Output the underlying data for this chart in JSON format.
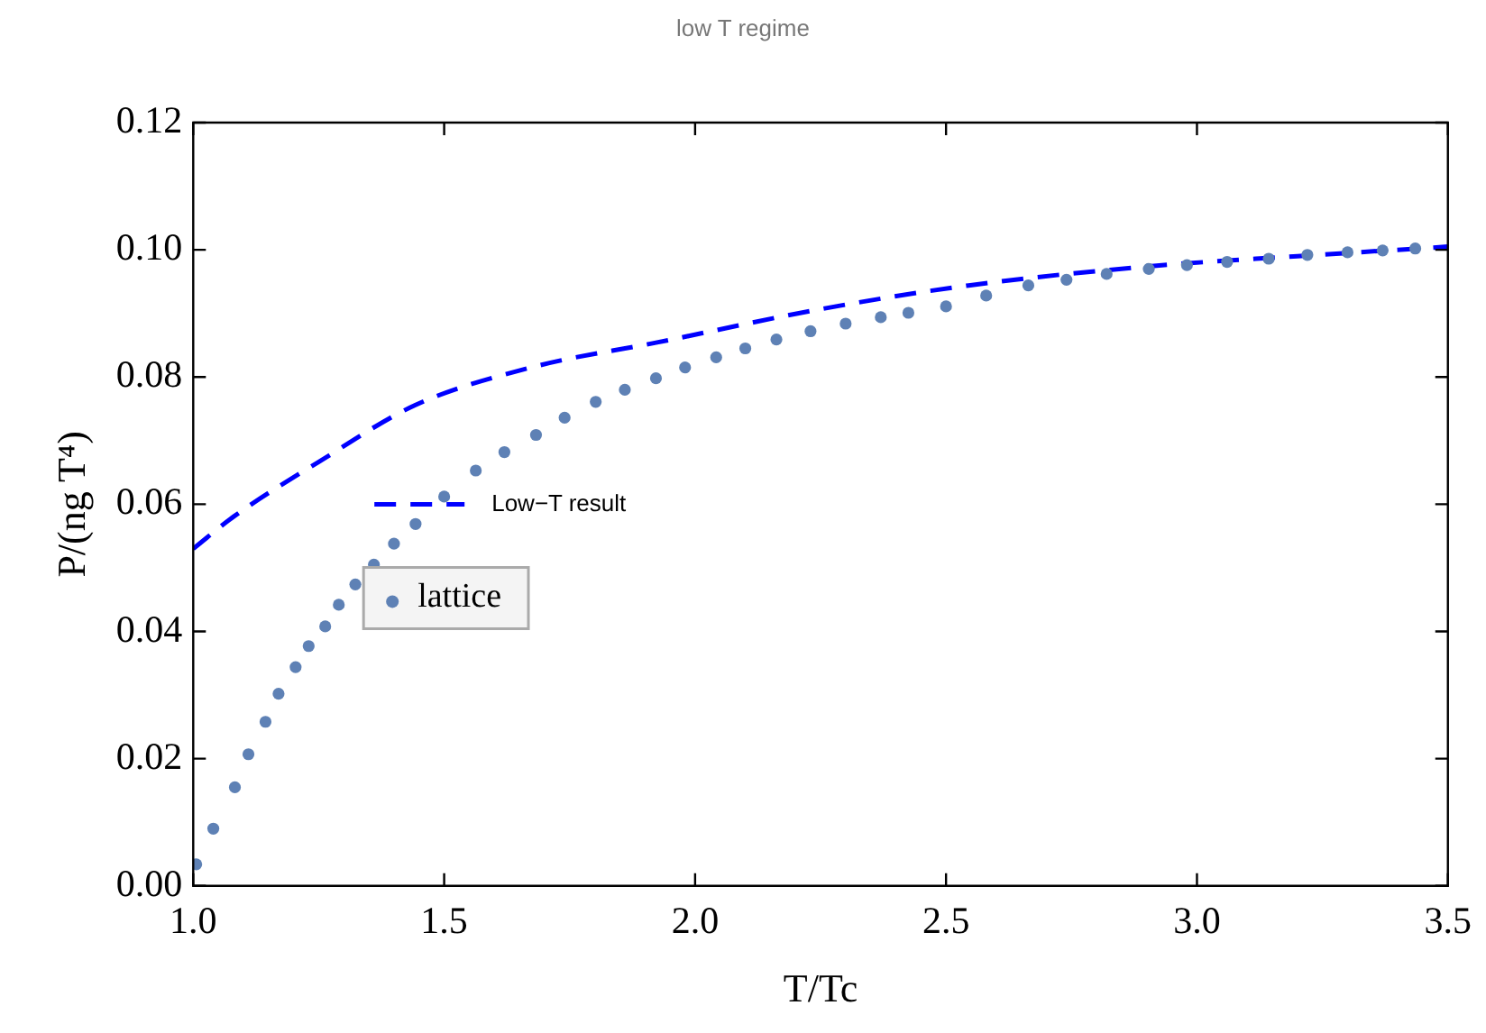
{
  "chart_data": {
    "type": "scatter",
    "title": "low T regime",
    "xlabel": "T/Tc",
    "ylabel": "P/(ng T⁴)",
    "xlim": [
      1.0,
      3.5
    ],
    "xticks": [
      {
        "value": 1,
        "label": "1.0"
      },
      {
        "value": 1.5,
        "label": "1.5"
      },
      {
        "value": 2,
        "label": "2.0"
      },
      {
        "value": 2.5,
        "label": "2.5"
      },
      {
        "value": 3,
        "label": "3.0"
      },
      {
        "value": 3.5,
        "label": "3.5"
      }
    ],
    "ylim": [
      0,
      0.12
    ],
    "yticks": [
      {
        "value": 0,
        "label": "0.00"
      },
      {
        "value": 0.02,
        "label": "0.02"
      },
      {
        "value": 0.04,
        "label": "0.04"
      },
      {
        "value": 0.06,
        "label": "0.06"
      },
      {
        "value": 0.08,
        "label": "0.08"
      },
      {
        "value": 0.1,
        "label": "0.10"
      },
      {
        "value": 0.12,
        "label": "0.12"
      }
    ],
    "grid": false,
    "legend": "left",
    "series": [
      {
        "name": "Low−T result",
        "type": "line",
        "color": "#0000ff",
        "line_style": "dashed",
        "marker": "none",
        "x": [
          1.0,
          1.083,
          1.251,
          1.443,
          1.683,
          1.922,
          2.245,
          2.545,
          2.904,
          3.2,
          3.5
        ],
        "values": [
          0.053,
          0.0582,
          0.0667,
          0.0756,
          0.0817,
          0.0854,
          0.0906,
          0.0944,
          0.0974,
          0.099,
          0.1005
        ]
      },
      {
        "name": "lattice",
        "type": "scatter",
        "color": "#5e81b5",
        "marker": "circle",
        "x": [
          1.006,
          1.04,
          1.083,
          1.11,
          1.144,
          1.17,
          1.204,
          1.23,
          1.263,
          1.29,
          1.323,
          1.36,
          1.4,
          1.443,
          1.5,
          1.563,
          1.62,
          1.683,
          1.74,
          1.802,
          1.86,
          1.922,
          1.98,
          2.042,
          2.1,
          2.162,
          2.23,
          2.3,
          2.37,
          2.425,
          2.5,
          2.58,
          2.664,
          2.74,
          2.82,
          2.904,
          2.98,
          3.06,
          3.143,
          3.22,
          3.3,
          3.37,
          3.435
        ],
        "values": [
          0.0034,
          0.009,
          0.0155,
          0.0207,
          0.0258,
          0.0302,
          0.0344,
          0.0377,
          0.0408,
          0.0442,
          0.0474,
          0.0505,
          0.0538,
          0.0569,
          0.0612,
          0.0653,
          0.0682,
          0.0709,
          0.0736,
          0.0761,
          0.078,
          0.0798,
          0.0815,
          0.0831,
          0.0845,
          0.0859,
          0.0872,
          0.0884,
          0.0894,
          0.0901,
          0.0911,
          0.0928,
          0.0944,
          0.0953,
          0.0962,
          0.097,
          0.0976,
          0.0981,
          0.0986,
          0.0992,
          0.0996,
          0.0999,
          0.1002
        ]
      }
    ]
  }
}
